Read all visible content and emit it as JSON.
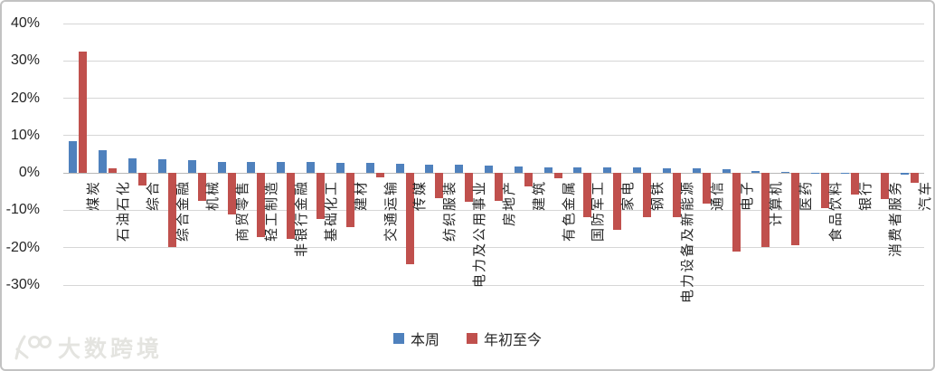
{
  "watermark": {
    "text": "大数跨境"
  },
  "chart_data": {
    "type": "bar",
    "title": "",
    "xlabel": "",
    "ylabel": "",
    "categories": [
      "煤炭",
      "石油石化",
      "综合",
      "综合金融",
      "机械",
      "商贸零售",
      "轻工制造",
      "非银行金融",
      "基础化工",
      "建材",
      "交通运输",
      "传媒",
      "纺织服装",
      "电力及公用事业",
      "房地产",
      "建筑",
      "有色金属",
      "国防军工",
      "家电",
      "钢铁",
      "电力设备及新能源",
      "通信",
      "电子",
      "计算机",
      "医药",
      "食品饮料",
      "银行",
      "消费者服务",
      "汽车"
    ],
    "series": [
      {
        "name": "本周",
        "color": "#4f81bd",
        "values": [
          8.5,
          6.2,
          4.0,
          3.6,
          3.5,
          3.0,
          2.9,
          2.9,
          2.9,
          2.8,
          2.6,
          2.5,
          2.3,
          2.2,
          1.9,
          1.8,
          1.6,
          1.5,
          1.4,
          1.4,
          1.3,
          1.3,
          1.0,
          0.6,
          0.3,
          0.1,
          0.1,
          0.0,
          -0.5
        ]
      },
      {
        "name": "年初至今",
        "color": "#c0504d",
        "values": [
          32.6,
          1.2,
          -3.4,
          -19.8,
          -7.5,
          -11.2,
          -17.1,
          -17.6,
          -12.2,
          -14.4,
          -1.1,
          -24.5,
          -6.7,
          -7.8,
          -7.5,
          -3.6,
          -1.5,
          -11.9,
          -15.3,
          -11.8,
          -11.8,
          -8.2,
          -21.1,
          -19.8,
          -19.4,
          -9.4,
          -5.9,
          -6.9,
          -2.7
        ]
      }
    ],
    "ylim": [
      -30,
      40
    ],
    "ytick_step": 10,
    "ytick_labels": [
      "40%",
      "30%",
      "20%",
      "10%",
      "0%",
      "-10%",
      "-20%",
      "-30%"
    ],
    "grid": true,
    "legend_position": "bottom"
  }
}
